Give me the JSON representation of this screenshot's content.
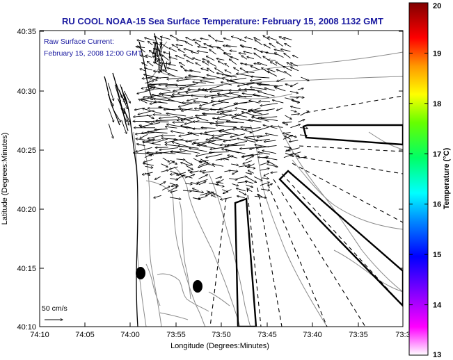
{
  "title": "RU COOL  NOAA-15  Sea Surface Temperature:  February 15, 2008 1132 GMT",
  "inset": {
    "line1": "Raw Surface Current:",
    "line2": "February 15, 2008 12:00 GMT"
  },
  "axes": {
    "xlabel": "Longitude (Degrees:Minutes)",
    "ylabel": "Latitude (Degrees:Minutes)",
    "xticks": [
      "74:10",
      "74:05",
      "74:00",
      "73:55",
      "73:50",
      "73:45",
      "73:40",
      "73:35",
      "73:3"
    ],
    "yticks": [
      "40:35",
      "40:30",
      "40:25",
      "40:20",
      "40:15",
      "40:10"
    ]
  },
  "scale_label": "50 cm/s",
  "colorbar": {
    "label": "Temperature (°C)",
    "ticks": [
      "20",
      "19",
      "18",
      "17",
      "16",
      "15",
      "14",
      "13"
    ],
    "min": 13,
    "max": 20,
    "colors": [
      "#ff00ff",
      "#8800ff",
      "#0000ff",
      "#0080ff",
      "#00ffff",
      "#00ff80",
      "#00ff00",
      "#80ff00",
      "#ffff00",
      "#ffaa00",
      "#ff5500",
      "#ff0000",
      "#aa0000",
      "#800000"
    ]
  },
  "colors": {
    "title": "#1a1aa0",
    "inset_text": "#1a1aa0",
    "coast": "#000000",
    "contour": "#888888"
  }
}
